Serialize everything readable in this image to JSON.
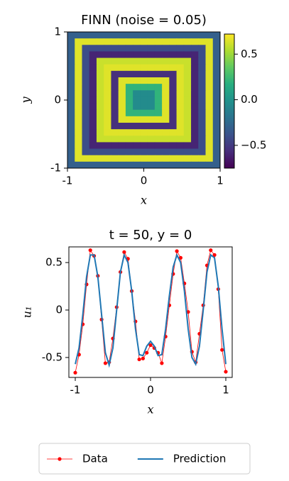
{
  "chart_data": [
    {
      "type": "heatmap",
      "title": "FINN (noise = 0.05)",
      "xlabel": "x",
      "ylabel": "y",
      "xlim": [
        -1,
        1
      ],
      "ylim": [
        -1,
        1
      ],
      "xticks": [
        -1,
        0,
        1
      ],
      "yticks": [
        -1,
        0,
        1
      ],
      "colormap": "viridis",
      "clim": [
        -0.75,
        0.72
      ],
      "cticks": [
        0.5,
        {
          "value": 0,
          "label": "0.0"
        },
        {
          "value": -0.5,
          "label": "−0.5"
        }
      ],
      "z": [
        [
          -0.3,
          -0.3,
          -0.3,
          -0.3,
          -0.3,
          -0.3,
          -0.3,
          -0.3,
          -0.3,
          -0.3,
          -0.3,
          -0.3,
          -0.3,
          -0.3,
          -0.3,
          -0.3,
          -0.3,
          -0.3,
          -0.3,
          -0.3,
          -0.3
        ],
        [
          -0.3,
          0.65,
          0.65,
          0.65,
          0.65,
          0.65,
          0.65,
          0.65,
          0.65,
          0.65,
          0.65,
          0.65,
          0.65,
          0.65,
          0.65,
          0.65,
          0.65,
          0.65,
          0.65,
          0.65,
          -0.3
        ],
        [
          -0.3,
          0.65,
          -0.4,
          -0.4,
          -0.4,
          -0.4,
          -0.4,
          -0.4,
          -0.4,
          -0.4,
          -0.4,
          -0.4,
          -0.4,
          -0.4,
          -0.4,
          -0.4,
          -0.4,
          -0.4,
          -0.4,
          0.65,
          -0.3
        ],
        [
          -0.3,
          0.65,
          -0.4,
          -0.6,
          -0.6,
          -0.6,
          -0.6,
          -0.6,
          -0.6,
          -0.6,
          -0.6,
          -0.6,
          -0.6,
          -0.6,
          -0.6,
          -0.6,
          -0.6,
          -0.6,
          -0.4,
          0.65,
          -0.3
        ],
        [
          -0.3,
          0.65,
          -0.4,
          -0.6,
          0.6,
          0.6,
          0.6,
          0.6,
          0.6,
          0.6,
          0.6,
          0.6,
          0.6,
          0.6,
          0.6,
          0.6,
          0.6,
          -0.6,
          -0.4,
          0.65,
          -0.3
        ],
        [
          -0.3,
          0.65,
          -0.4,
          -0.6,
          0.6,
          0.65,
          0.65,
          0.65,
          0.65,
          0.65,
          0.65,
          0.65,
          0.65,
          0.65,
          0.65,
          0.65,
          0.6,
          -0.6,
          -0.4,
          0.65,
          -0.3
        ],
        [
          -0.3,
          0.65,
          -0.4,
          -0.6,
          0.6,
          0.65,
          -0.55,
          -0.55,
          -0.55,
          -0.55,
          -0.55,
          -0.55,
          -0.55,
          -0.55,
          -0.55,
          0.65,
          0.6,
          -0.6,
          -0.4,
          0.65,
          -0.3
        ],
        [
          -0.3,
          0.65,
          -0.4,
          -0.6,
          0.6,
          0.65,
          -0.55,
          0.65,
          0.65,
          0.65,
          0.65,
          0.65,
          0.65,
          0.65,
          -0.55,
          0.65,
          0.6,
          -0.6,
          -0.4,
          0.65,
          -0.3
        ],
        [
          -0.3,
          0.65,
          -0.4,
          -0.6,
          0.6,
          0.65,
          -0.55,
          0.65,
          0.2,
          0.2,
          0.2,
          0.2,
          0.2,
          0.65,
          -0.55,
          0.65,
          0.6,
          -0.6,
          -0.4,
          0.65,
          -0.3
        ],
        [
          -0.3,
          0.65,
          -0.4,
          -0.6,
          0.6,
          0.65,
          -0.55,
          0.65,
          0.2,
          -0.05,
          -0.05,
          -0.05,
          0.2,
          0.65,
          -0.55,
          0.65,
          0.6,
          -0.6,
          -0.4,
          0.65,
          -0.3
        ],
        [
          -0.3,
          0.65,
          -0.4,
          -0.6,
          0.6,
          0.65,
          -0.55,
          0.65,
          0.2,
          -0.05,
          -0.05,
          -0.05,
          0.2,
          0.65,
          -0.55,
          0.65,
          0.6,
          -0.6,
          -0.4,
          0.65,
          -0.3
        ],
        [
          -0.3,
          0.65,
          -0.4,
          -0.6,
          0.6,
          0.65,
          -0.55,
          0.65,
          0.2,
          -0.05,
          -0.05,
          -0.05,
          0.2,
          0.65,
          -0.55,
          0.65,
          0.6,
          -0.6,
          -0.4,
          0.65,
          -0.3
        ],
        [
          -0.3,
          0.65,
          -0.4,
          -0.6,
          0.6,
          0.65,
          -0.55,
          0.65,
          0.2,
          0.2,
          0.2,
          0.2,
          0.2,
          0.65,
          -0.55,
          0.65,
          0.6,
          -0.6,
          -0.4,
          0.65,
          -0.3
        ],
        [
          -0.3,
          0.65,
          -0.4,
          -0.6,
          0.6,
          0.65,
          -0.55,
          0.65,
          0.65,
          0.65,
          0.65,
          0.65,
          0.65,
          0.65,
          -0.55,
          0.65,
          0.6,
          -0.6,
          -0.4,
          0.65,
          -0.3
        ],
        [
          -0.3,
          0.65,
          -0.4,
          -0.6,
          0.6,
          0.65,
          -0.55,
          -0.55,
          -0.55,
          -0.55,
          -0.55,
          -0.55,
          -0.55,
          -0.55,
          -0.55,
          0.65,
          0.6,
          -0.6,
          -0.4,
          0.65,
          -0.3
        ],
        [
          -0.3,
          0.65,
          -0.4,
          -0.6,
          0.6,
          0.65,
          0.65,
          0.65,
          0.65,
          0.65,
          0.65,
          0.65,
          0.65,
          0.65,
          0.65,
          0.65,
          0.6,
          -0.6,
          -0.4,
          0.65,
          -0.3
        ],
        [
          -0.3,
          0.65,
          -0.4,
          -0.6,
          0.6,
          0.6,
          0.6,
          0.6,
          0.6,
          0.6,
          0.6,
          0.6,
          0.6,
          0.6,
          0.6,
          0.6,
          0.6,
          -0.6,
          -0.4,
          0.65,
          -0.3
        ],
        [
          -0.3,
          0.65,
          -0.4,
          -0.6,
          -0.6,
          -0.6,
          -0.6,
          -0.6,
          -0.6,
          -0.6,
          -0.6,
          -0.6,
          -0.6,
          -0.6,
          -0.6,
          -0.6,
          -0.6,
          -0.6,
          -0.4,
          0.65,
          -0.3
        ],
        [
          -0.3,
          0.65,
          -0.4,
          -0.4,
          -0.4,
          -0.4,
          -0.4,
          -0.4,
          -0.4,
          -0.4,
          -0.4,
          -0.4,
          -0.4,
          -0.4,
          -0.4,
          -0.4,
          -0.4,
          -0.4,
          -0.4,
          0.65,
          -0.3
        ],
        [
          -0.3,
          0.65,
          0.65,
          0.65,
          0.65,
          0.65,
          0.65,
          0.65,
          0.65,
          0.65,
          0.65,
          0.65,
          0.65,
          0.65,
          0.65,
          0.65,
          0.65,
          0.65,
          0.65,
          0.65,
          -0.3
        ],
        [
          -0.3,
          -0.3,
          -0.3,
          -0.3,
          -0.3,
          -0.3,
          -0.3,
          -0.3,
          -0.3,
          -0.3,
          -0.3,
          -0.3,
          -0.3,
          -0.3,
          -0.3,
          -0.3,
          -0.3,
          -0.3,
          -0.3,
          -0.3,
          -0.3
        ]
      ]
    },
    {
      "type": "line",
      "title": "t = 50, y = 0",
      "xlabel": "x",
      "ylabel": "u₁",
      "xlim": [
        -1.085,
        1.085
      ],
      "ylim": [
        -0.71,
        0.665
      ],
      "xticks": [
        -1,
        0,
        1
      ],
      "yticks": [
        0.5,
        0,
        -0.5
      ],
      "legend": "bottom",
      "x": [
        -1,
        -0.95,
        -0.9,
        -0.85,
        -0.8,
        -0.75,
        -0.7,
        -0.65,
        -0.6,
        -0.55,
        -0.5,
        -0.45,
        -0.4,
        -0.35,
        -0.3,
        -0.25,
        -0.2,
        -0.15,
        -0.1,
        -0.05,
        0,
        0.05,
        0.1,
        0.15,
        0.2,
        0.25,
        0.3,
        0.35,
        0.4,
        0.45,
        0.5,
        0.55,
        0.6,
        0.65,
        0.7,
        0.75,
        0.8,
        0.85,
        0.9,
        0.95,
        1
      ],
      "series": [
        {
          "name": "Data",
          "color": "#ff0000",
          "marker": true,
          "values": [
            -0.66,
            -0.47,
            -0.15,
            0.27,
            0.63,
            0.57,
            0.36,
            -0.1,
            -0.56,
            -0.55,
            -0.3,
            0.03,
            0.4,
            0.61,
            0.54,
            0.2,
            -0.12,
            -0.52,
            -0.51,
            -0.45,
            -0.37,
            -0.4,
            -0.45,
            -0.56,
            -0.28,
            0.05,
            0.38,
            0.62,
            0.55,
            0.28,
            -0.02,
            -0.44,
            -0.55,
            -0.25,
            0.05,
            0.47,
            0.63,
            0.58,
            0.22,
            -0.42,
            -0.65
          ]
        },
        {
          "name": "Prediction",
          "color": "#1f77b4",
          "marker": false,
          "values": [
            -0.57,
            -0.4,
            -0.05,
            0.35,
            0.58,
            0.58,
            0.35,
            -0.05,
            -0.45,
            -0.58,
            -0.4,
            0,
            0.4,
            0.58,
            0.5,
            0.2,
            -0.2,
            -0.47,
            -0.48,
            -0.38,
            -0.33,
            -0.38,
            -0.48,
            -0.47,
            -0.2,
            0.15,
            0.45,
            0.58,
            0.5,
            0.2,
            -0.2,
            -0.5,
            -0.57,
            -0.38,
            0,
            0.4,
            0.58,
            0.55,
            0.25,
            -0.2,
            -0.57
          ]
        }
      ]
    }
  ]
}
